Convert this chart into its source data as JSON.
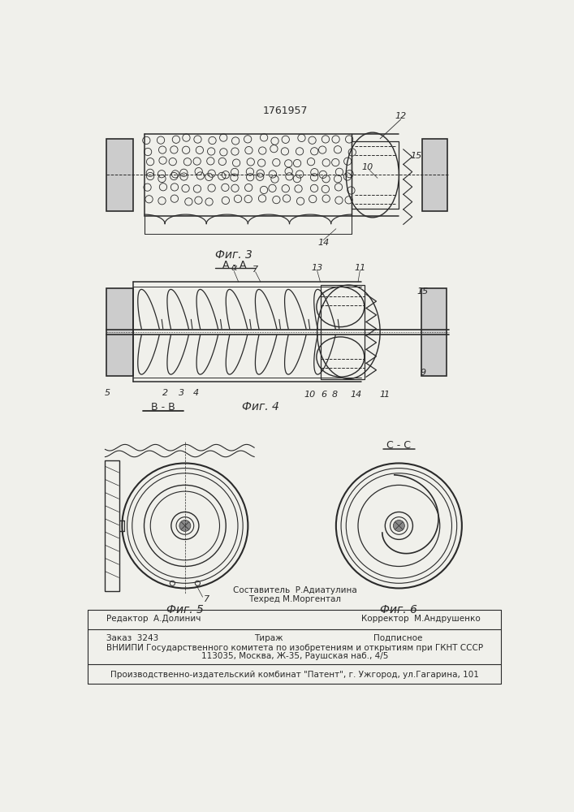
{
  "patent_number": "1761957",
  "bg_color": "#f0f0eb",
  "line_color": "#2a2a2a",
  "fig3_label": "Фиг. 3",
  "fig3_section": "А - А",
  "fig4_label": "Фиг. 4",
  "fig4_section": "В - В",
  "fig5_label": "Фиг. 5",
  "fig6_label": "Фиг. 6",
  "fig6_section": "С - С",
  "footer_sestavitel": "Составитель  Р.Адиатулина",
  "footer_tehred": "Техред М.Моргентал",
  "footer_line1_left": "Редактор  А.Долинич",
  "footer_line1_right": "Корректор  М.Андрушенко",
  "footer_line2_left": "Заказ  3243",
  "footer_line2_mid": "Тираж",
  "footer_line2_right": "Подписное",
  "footer_line3": "ВНИИПИ Государственного комитета по изобретениям и открытиям при ГКНТ СССР",
  "footer_line4": "113035, Москва, Ж-35, Раушская наб., 4/5",
  "footer_line5": "Производственно-издательский комбинат \"Патент\", г. Ужгород, ул.Гагарина, 101"
}
